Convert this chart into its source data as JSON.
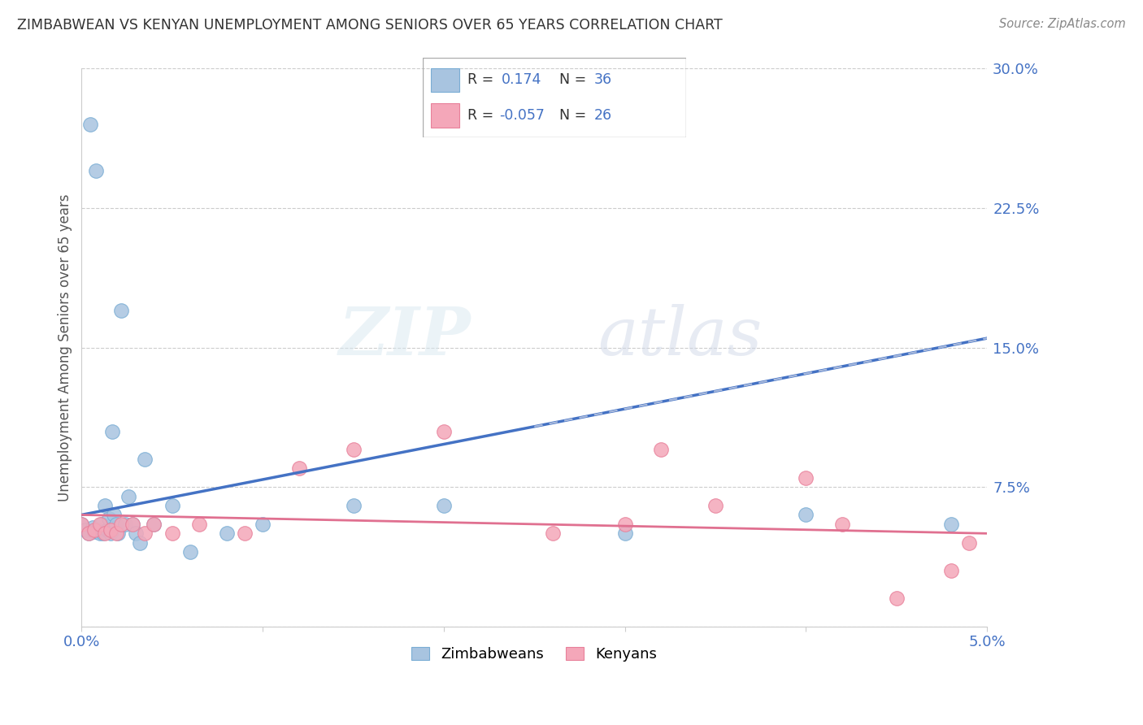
{
  "title": "ZIMBABWEAN VS KENYAN UNEMPLOYMENT AMONG SENIORS OVER 65 YEARS CORRELATION CHART",
  "source": "Source: ZipAtlas.com",
  "ylabel": "Unemployment Among Seniors over 65 years",
  "xlim": [
    0.0,
    5.0
  ],
  "ylim": [
    0.0,
    30.0
  ],
  "yticks": [
    0.0,
    7.5,
    15.0,
    22.5,
    30.0
  ],
  "ytick_labels": [
    "",
    "7.5%",
    "15.0%",
    "22.5%",
    "30.0%"
  ],
  "watermark_zip": "ZIP",
  "watermark_atlas": "atlas",
  "zim_color": "#a8c4e0",
  "zim_edge_color": "#7aadd4",
  "ken_color": "#f4a7b9",
  "ken_edge_color": "#e8809a",
  "zim_line_color": "#4472c4",
  "ken_line_color": "#e07090",
  "zim_x": [
    0.0,
    0.02,
    0.04,
    0.05,
    0.06,
    0.07,
    0.08,
    0.09,
    0.1,
    0.11,
    0.12,
    0.13,
    0.14,
    0.15,
    0.16,
    0.17,
    0.18,
    0.19,
    0.2,
    0.22,
    0.24,
    0.26,
    0.28,
    0.3,
    0.32,
    0.35,
    0.4,
    0.5,
    0.6,
    0.8,
    1.0,
    1.5,
    2.0,
    3.0,
    4.0,
    4.8
  ],
  "zim_y": [
    5.5,
    5.2,
    5.0,
    27.0,
    5.3,
    5.1,
    24.5,
    5.2,
    5.0,
    5.5,
    5.0,
    6.5,
    5.2,
    5.8,
    5.0,
    10.5,
    6.0,
    5.5,
    5.0,
    17.0,
    5.5,
    7.0,
    5.5,
    5.0,
    4.5,
    9.0,
    5.5,
    6.5,
    4.0,
    5.0,
    5.5,
    6.5,
    6.5,
    5.0,
    6.0,
    5.5
  ],
  "ken_x": [
    0.0,
    0.04,
    0.07,
    0.1,
    0.13,
    0.16,
    0.19,
    0.22,
    0.28,
    0.35,
    0.4,
    0.5,
    0.65,
    0.9,
    1.2,
    1.5,
    2.0,
    2.6,
    3.0,
    3.2,
    3.5,
    4.0,
    4.2,
    4.5,
    4.8,
    4.9
  ],
  "ken_y": [
    5.5,
    5.0,
    5.2,
    5.5,
    5.0,
    5.2,
    5.0,
    5.5,
    5.5,
    5.0,
    5.5,
    5.0,
    5.5,
    5.0,
    8.5,
    9.5,
    10.5,
    5.0,
    5.5,
    9.5,
    6.5,
    8.0,
    5.5,
    1.5,
    3.0,
    4.5
  ],
  "zim_reg_x0": 0.0,
  "zim_reg_y0": 6.0,
  "zim_reg_x1": 5.0,
  "zim_reg_y1": 15.5,
  "ken_reg_x0": 0.0,
  "ken_reg_y0": 6.0,
  "ken_reg_x1": 5.0,
  "ken_reg_y1": 5.0
}
